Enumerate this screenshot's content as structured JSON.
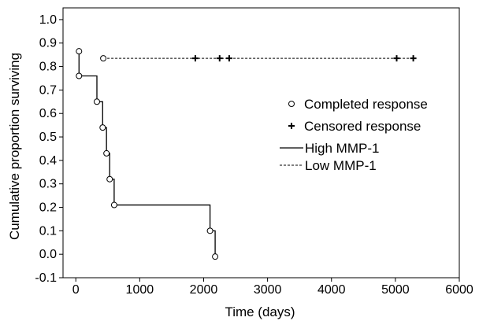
{
  "chart_data": {
    "type": "line",
    "title": "",
    "xlabel": "Time (days)",
    "ylabel": "Cumulative proportion surviving",
    "xlim": [
      -200,
      6000
    ],
    "ylim": [
      -0.1,
      1.05
    ],
    "x_ticks": [
      0,
      1000,
      2000,
      3000,
      4000,
      5000,
      6000
    ],
    "x_tick_labels": [
      "0",
      "1000",
      "2000",
      "3000",
      "4000",
      "5000",
      "6000"
    ],
    "y_ticks": [
      -0.1,
      0.0,
      0.1,
      0.2,
      0.3,
      0.4,
      0.5,
      0.6,
      0.7,
      0.8,
      0.9,
      1.0
    ],
    "y_tick_labels": [
      "-0.1",
      "0.0",
      "0.1",
      "0.2",
      "0.3",
      "0.4",
      "0.5",
      "0.6",
      "0.7",
      "0.8",
      "0.9",
      "1.0"
    ],
    "grid": false,
    "legend_position": "right",
    "series": [
      {
        "name": "High MMP-1",
        "line_style": "solid",
        "color": "#000000",
        "steps": [
          [
            50,
            0.76
          ],
          [
            330,
            0.65
          ],
          [
            420,
            0.54
          ],
          [
            480,
            0.43
          ],
          [
            530,
            0.32
          ],
          [
            600,
            0.21
          ],
          [
            2100,
            0.1
          ],
          [
            2180,
            -0.01
          ]
        ],
        "completed_points": [
          [
            50,
            0.76
          ],
          [
            330,
            0.65
          ],
          [
            420,
            0.54
          ],
          [
            480,
            0.43
          ],
          [
            530,
            0.32
          ],
          [
            600,
            0.21
          ],
          [
            2100,
            0.1
          ],
          [
            2180,
            -0.01
          ]
        ],
        "censored_points": []
      },
      {
        "name": "Low MMP-1",
        "line_style": "dashed",
        "color": "#000000",
        "steps": [
          [
            430,
            0.835
          ]
        ],
        "completed_points": [
          [
            430,
            0.835
          ]
        ],
        "censored_points": [
          [
            1870,
            0.835
          ],
          [
            2250,
            0.835
          ],
          [
            2400,
            0.835
          ],
          [
            5020,
            0.835
          ],
          [
            5280,
            0.835
          ]
        ],
        "end_x": 5280
      }
    ],
    "extra_completed_points": [
      [
        50,
        0.865
      ]
    ],
    "start": {
      "x": 50,
      "y_top": 0.865
    },
    "legend": [
      {
        "label": "Completed response",
        "marker": "circle"
      },
      {
        "label": "Censored response",
        "marker": "plus"
      },
      {
        "label": "High MMP-1",
        "marker": "solid-line"
      },
      {
        "label": "Low MMP-1",
        "marker": "dashed-line"
      }
    ]
  }
}
